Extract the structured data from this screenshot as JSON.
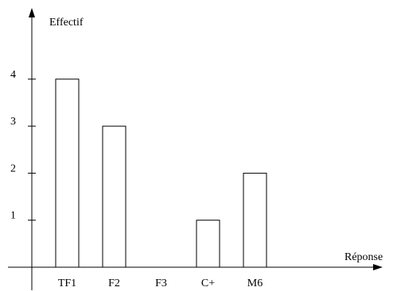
{
  "chart_data": {
    "type": "bar",
    "title": "",
    "xlabel": "Réponse",
    "ylabel": "Effectif",
    "categories": [
      "TF1",
      "F2",
      "F3",
      "C+",
      "M6"
    ],
    "values": [
      4,
      3,
      0,
      1,
      2
    ],
    "y_ticks": [
      1,
      2,
      3,
      4
    ],
    "ylim": [
      0,
      5
    ],
    "grid": false,
    "legend": "none",
    "colors": {
      "bar_fill": "#ffffff",
      "bar_stroke": "#000000",
      "axis": "#000000"
    }
  }
}
